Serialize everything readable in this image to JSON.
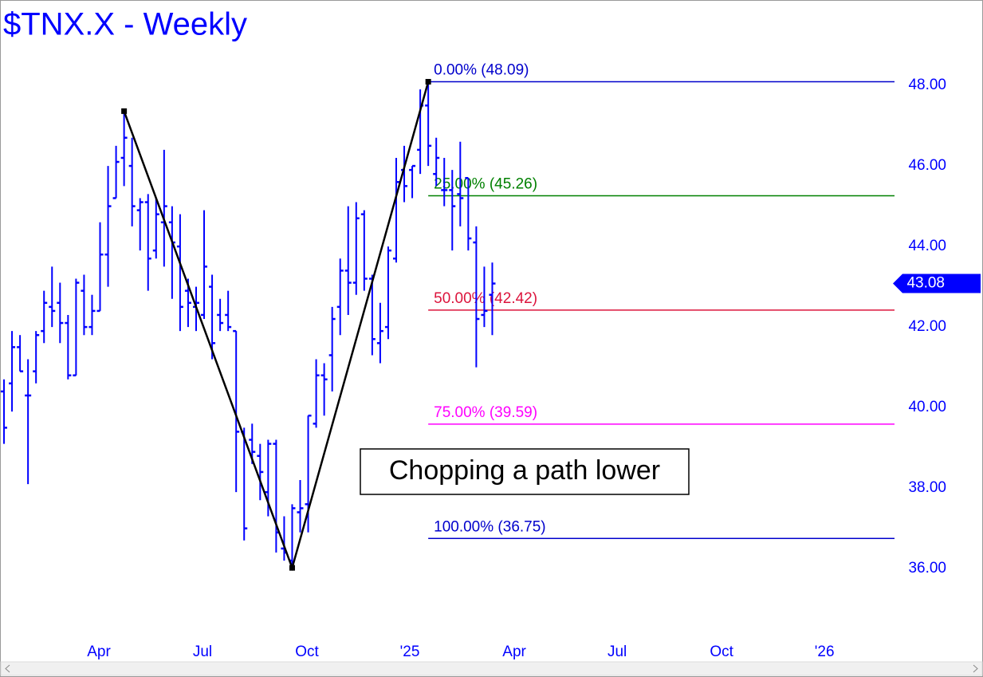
{
  "chart_data": {
    "type": "ohlc",
    "title": "$TNX.X - Weekly",
    "color": "#0000ff",
    "x": [
      0,
      1,
      2,
      3,
      4,
      5,
      6,
      7,
      8,
      9,
      10,
      11,
      12,
      13,
      14,
      15,
      16,
      17,
      18,
      19,
      20,
      21,
      22,
      23,
      24,
      25,
      26,
      27,
      28,
      29,
      30,
      31,
      32,
      33,
      34,
      35,
      36,
      37,
      38,
      39,
      40,
      41,
      42,
      43,
      44,
      45,
      46,
      47,
      48,
      49,
      50,
      51,
      52,
      53,
      54,
      55,
      56,
      57,
      58,
      59,
      60,
      61
    ],
    "open": [
      40.4,
      40.6,
      41.5,
      40.3,
      40.9,
      41.9,
      42.5,
      42.6,
      42.1,
      40.8,
      42.9,
      42.0,
      42.4,
      43.8,
      45.2,
      46.2,
      46.0,
      44.9,
      45.1,
      43.9,
      44.6,
      44.6,
      44.0,
      42.9,
      42.5,
      42.3,
      43.0,
      42.3,
      42.3,
      41.9,
      39.4,
      39.2,
      38.8,
      37.9,
      39.1,
      36.5,
      36.2,
      37.4,
      37.6,
      39.6,
      40.8,
      41.3,
      42.5,
      43.4,
      43.1,
      44.8,
      43.2,
      41.6,
      42.0,
      43.7,
      45.9,
      45.9,
      46.4,
      47.5,
      45.8,
      45.4,
      45.4,
      45.3,
      45.7,
      44.1,
      42.3,
      42.8
    ],
    "high": [
      40.7,
      41.9,
      41.8,
      41.2,
      41.9,
      42.9,
      43.5,
      43.1,
      42.3,
      43.2,
      43.3,
      42.8,
      44.6,
      46.0,
      46.5,
      47.36,
      46.7,
      45.2,
      45.3,
      45.2,
      46.4,
      45.0,
      44.8,
      43.2,
      43.0,
      44.9,
      43.3,
      42.7,
      42.9,
      41.9,
      39.5,
      39.6,
      39.1,
      39.2,
      39.2,
      37.3,
      37.6,
      38.2,
      39.8,
      41.2,
      41.1,
      42.5,
      43.7,
      45.0,
      45.1,
      44.9,
      43.3,
      42.6,
      44.0,
      46.2,
      46.5,
      46.0,
      47.9,
      48.09,
      46.7,
      46.2,
      45.9,
      46.6,
      45.7,
      44.5,
      43.5,
      43.6
    ],
    "low": [
      39.1,
      39.9,
      40.9,
      38.1,
      40.6,
      41.6,
      42.0,
      41.6,
      40.7,
      40.8,
      41.8,
      41.8,
      42.4,
      43.0,
      45.2,
      45.5,
      44.5,
      43.9,
      42.9,
      43.7,
      43.5,
      42.7,
      41.9,
      42.0,
      41.9,
      42.2,
      41.2,
      41.9,
      41.9,
      37.9,
      36.7,
      38.6,
      37.7,
      37.3,
      36.4,
      36.2,
      36.02,
      36.9,
      36.9,
      39.5,
      39.8,
      40.4,
      41.8,
      42.3,
      42.8,
      42.9,
      41.3,
      41.1,
      41.7,
      43.6,
      45.1,
      45.2,
      45.8,
      46.0,
      45.5,
      45.0,
      43.9,
      44.5,
      43.9,
      41.0,
      42.0,
      41.8
    ],
    "close": [
      39.5,
      41.5,
      40.9,
      40.3,
      41.8,
      42.6,
      42.4,
      42.1,
      40.8,
      43.1,
      42.0,
      42.4,
      43.8,
      45.0,
      46.1,
      46.7,
      45.0,
      45.1,
      43.7,
      44.8,
      45.0,
      44.1,
      42.5,
      42.6,
      42.6,
      43.5,
      41.6,
      42.1,
      42.0,
      39.4,
      37.0,
      38.9,
      38.4,
      39.1,
      36.9,
      36.4,
      37.5,
      37.5,
      39.8,
      40.8,
      40.7,
      42.2,
      43.4,
      43.1,
      44.7,
      43.2,
      41.7,
      41.9,
      43.9,
      45.6,
      45.5,
      46.0,
      47.5,
      46.5,
      46.2,
      45.4,
      45.0,
      45.2,
      44.2,
      42.2,
      42.4,
      43.08
    ],
    "xlim": [
      -0.5,
      111.25
    ],
    "xticks": [
      {
        "value": 11.85,
        "label": "Apr"
      },
      {
        "value": 24.8,
        "label": "Jul"
      },
      {
        "value": 37.85,
        "label": "Oct"
      },
      {
        "value": 50.7,
        "label": "'25"
      },
      {
        "value": 63.75,
        "label": "Apr"
      },
      {
        "value": 76.6,
        "label": "Jul"
      },
      {
        "value": 89.65,
        "label": "Oct"
      },
      {
        "value": 102.5,
        "label": "'26"
      }
    ],
    "ylim": [
      34.28,
      50.12
    ],
    "yticks": [
      {
        "value": 36,
        "label": "36.00"
      },
      {
        "value": 38,
        "label": "38.00"
      },
      {
        "value": 40,
        "label": "40.00"
      },
      {
        "value": 42,
        "label": "42.00"
      },
      {
        "value": 44,
        "label": "44.00"
      },
      {
        "value": 46,
        "label": "46.00"
      },
      {
        "value": 48,
        "label": "48.00"
      }
    ],
    "levels": [
      {
        "label": "0.00% (48.09)",
        "value": 48.09,
        "color": "#0000cc"
      },
      {
        "label": "25.00% (45.26)",
        "value": 45.26,
        "color": "#008000"
      },
      {
        "label": "50.00% (42.42)",
        "value": 42.42,
        "color": "#dc143c"
      },
      {
        "label": "75.00% (39.59)",
        "value": 39.59,
        "color": "#ff00ff"
      },
      {
        "label": "100.00% (36.75)",
        "value": 36.75,
        "color": "#0000cc"
      }
    ],
    "levels_start": 53,
    "zigzag": {
      "x": [
        15,
        36,
        53
      ],
      "y": [
        47.36,
        36.02,
        48.09
      ],
      "color": "#000000"
    },
    "last_price": {
      "value": 43.08,
      "label": "43.08"
    },
    "annotation": "Chopping a path lower"
  }
}
